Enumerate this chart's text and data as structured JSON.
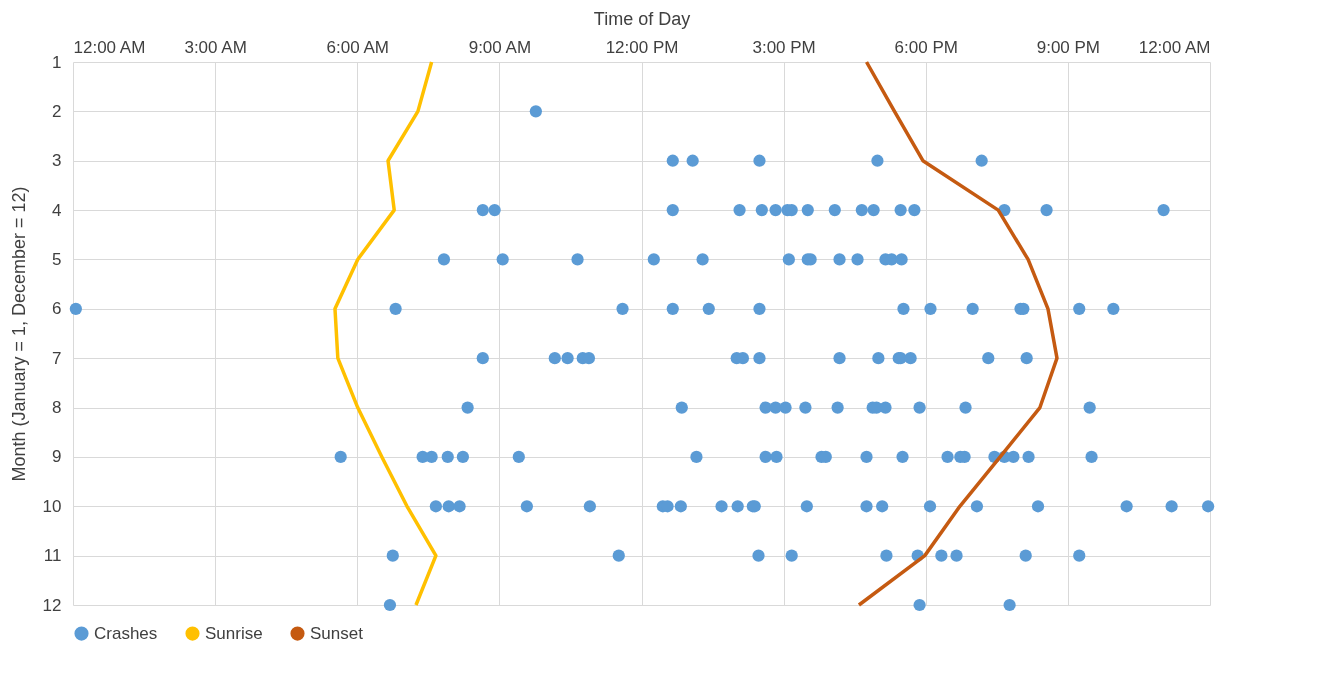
{
  "chart_data": {
    "type": "scatter",
    "xlabel": "Time of Day",
    "ylabel": "Month (January = 1, December = 12)",
    "xlim": [
      0,
      24
    ],
    "xticks": [
      {
        "value": 0,
        "label": "12:00 AM"
      },
      {
        "value": 3,
        "label": "3:00 AM"
      },
      {
        "value": 6,
        "label": "6:00 AM"
      },
      {
        "value": 9,
        "label": "9:00 AM"
      },
      {
        "value": 12,
        "label": "12:00 PM"
      },
      {
        "value": 15,
        "label": "3:00 PM"
      },
      {
        "value": 18,
        "label": "6:00 PM"
      },
      {
        "value": 21,
        "label": "9:00 PM"
      },
      {
        "value": 24,
        "label": "12:00 AM"
      }
    ],
    "ylim": [
      12,
      1
    ],
    "yticks": [
      1,
      2,
      3,
      4,
      5,
      6,
      7,
      8,
      9,
      10,
      11,
      12
    ],
    "grid": true,
    "legend": "bottom",
    "series": [
      {
        "name": "Crashes",
        "marker": "circle",
        "color": "#5b9bd5",
        "x": [
          9.77,
          12.66,
          13.08,
          14.49,
          16.98,
          19.18,
          8.65,
          8.9,
          12.66,
          14.07,
          14.54,
          14.83,
          15.08,
          15.17,
          15.51,
          16.08,
          16.65,
          16.9,
          17.47,
          17.76,
          19.66,
          20.55,
          23.02,
          7.83,
          9.07,
          10.65,
          12.26,
          13.29,
          15.11,
          15.51,
          15.57,
          16.18,
          16.56,
          17.15,
          17.28,
          17.49,
          0.06,
          6.81,
          11.6,
          12.66,
          13.42,
          14.49,
          17.53,
          18.1,
          18.99,
          20.0,
          20.06,
          21.24,
          21.96,
          8.65,
          10.17,
          10.44,
          10.76,
          10.89,
          14.01,
          14.14,
          14.49,
          16.18,
          17.0,
          17.43,
          17.47,
          17.68,
          19.32,
          20.13,
          8.33,
          12.85,
          14.62,
          14.83,
          15.04,
          15.46,
          16.14,
          16.88,
          16.96,
          17.15,
          17.87,
          18.84,
          21.46,
          5.65,
          7.38,
          7.57,
          7.91,
          8.23,
          9.41,
          13.16,
          14.62,
          14.85,
          15.8,
          15.89,
          16.75,
          17.51,
          18.46,
          18.73,
          18.82,
          19.45,
          19.66,
          19.85,
          20.17,
          21.5,
          7.66,
          7.93,
          8.16,
          9.58,
          10.91,
          12.45,
          12.55,
          12.83,
          13.69,
          14.03,
          14.35,
          14.39,
          15.49,
          16.75,
          17.08,
          18.09,
          19.08,
          20.37,
          22.24,
          23.19,
          23.96,
          6.75,
          11.52,
          14.47,
          15.17,
          17.17,
          17.83,
          18.33,
          18.65,
          20.11,
          21.24,
          6.69,
          17.87,
          19.77
        ],
        "values": [
          2,
          3,
          3,
          3,
          3,
          3,
          4,
          4,
          4,
          4,
          4,
          4,
          4,
          4,
          4,
          4,
          4,
          4,
          4,
          4,
          4,
          4,
          4,
          5,
          5,
          5,
          5,
          5,
          5,
          5,
          5,
          5,
          5,
          5,
          5,
          5,
          6,
          6,
          6,
          6,
          6,
          6,
          6,
          6,
          6,
          6,
          6,
          6,
          6,
          7,
          7,
          7,
          7,
          7,
          7,
          7,
          7,
          7,
          7,
          7,
          7,
          7,
          7,
          7,
          8,
          8,
          8,
          8,
          8,
          8,
          8,
          8,
          8,
          8,
          8,
          8,
          8,
          9,
          9,
          9,
          9,
          9,
          9,
          9,
          9,
          9,
          9,
          9,
          9,
          9,
          9,
          9,
          9,
          9,
          9,
          9,
          9,
          9,
          10,
          10,
          10,
          10,
          10,
          10,
          10,
          10,
          10,
          10,
          10,
          10,
          10,
          10,
          10,
          10,
          10,
          10,
          10,
          10,
          10,
          11,
          11,
          11,
          11,
          11,
          11,
          11,
          11,
          11,
          11,
          12,
          12,
          12
        ]
      },
      {
        "name": "Sunrise",
        "type": "line",
        "color": "#ffc000",
        "x": [
          7.57,
          7.28,
          6.65,
          6.78,
          6.01,
          5.53,
          5.59,
          6.01,
          6.52,
          7.05,
          7.66,
          7.24
        ],
        "values": [
          1,
          2,
          3,
          4,
          5,
          6,
          7,
          8,
          9,
          10,
          11,
          12
        ]
      },
      {
        "name": "Sunset",
        "type": "line",
        "color": "#c55a11",
        "x": [
          16.75,
          17.34,
          17.94,
          19.53,
          20.16,
          20.58,
          20.77,
          20.41,
          19.57,
          18.72,
          17.98,
          16.59
        ],
        "values": [
          1,
          2,
          3,
          4,
          5,
          6,
          7,
          8,
          9,
          10,
          11,
          12
        ]
      }
    ]
  }
}
